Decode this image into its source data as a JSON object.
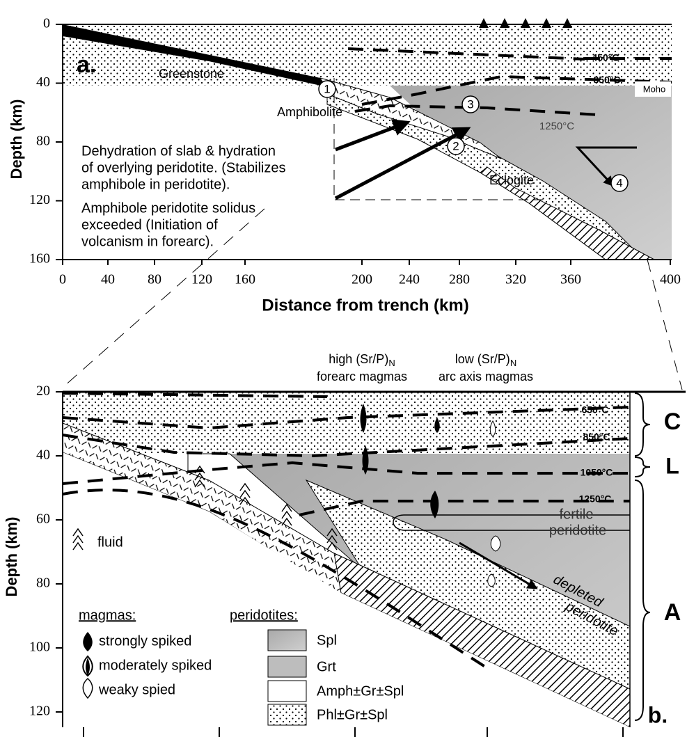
{
  "panel_a": {
    "label": "a.",
    "y_axis_title": "Depth (km)",
    "x_axis_title": "Distance from trench (km)",
    "yticks": [
      0,
      40,
      80,
      120,
      160
    ],
    "xticks": [
      0,
      40,
      80,
      120,
      160,
      200,
      240,
      280,
      320,
      360,
      400
    ],
    "zones": {
      "greenstone": "Greenstone",
      "amphibolite": "Amphibolite",
      "eclogite": "Eclogite",
      "moho": "Moho"
    },
    "isotherms": [
      "450°C",
      "850°C",
      "1250°C"
    ],
    "markers": [
      "1",
      "2",
      "3",
      "4"
    ],
    "notes": [
      "Dehydration of slab & hydration",
      "of overlying peridotite. (Stabilizes",
      "amphibole in peridotite).",
      "Amphibole peridotite solidus",
      "exceeded (Initiation of",
      "volcanism in forearc)."
    ]
  },
  "panel_b": {
    "label": "b.",
    "y_axis_title": "Depth (km)",
    "yticks": [
      20,
      40,
      60,
      80,
      100,
      120
    ],
    "headers": {
      "forearc": {
        "prefix": "high (Sr/P)",
        "subscript": "N",
        "line2": "forearc magmas"
      },
      "arc": {
        "prefix": "low (Sr/P)",
        "subscript": "N",
        "line2": "arc axis magmas"
      }
    },
    "isotherms": [
      "650°C",
      "850°C",
      "1050°C",
      "1250°C"
    ],
    "regions": {
      "fertile": [
        "fertile",
        "peridotite"
      ],
      "depleted": [
        "depleted",
        "peridotite"
      ]
    },
    "layers": [
      "C",
      "L",
      "A"
    ],
    "legend": {
      "fluid": "fluid",
      "magmas_title": "magmas:",
      "magmas": [
        "strongly spiked",
        "moderately spiked",
        "weaky spied"
      ],
      "peridotites_title": "peridotites:",
      "peridotites": [
        "Spl",
        "Grt",
        "Amph±Gr±Spl",
        "Phl±Gr±Spl"
      ]
    }
  }
}
